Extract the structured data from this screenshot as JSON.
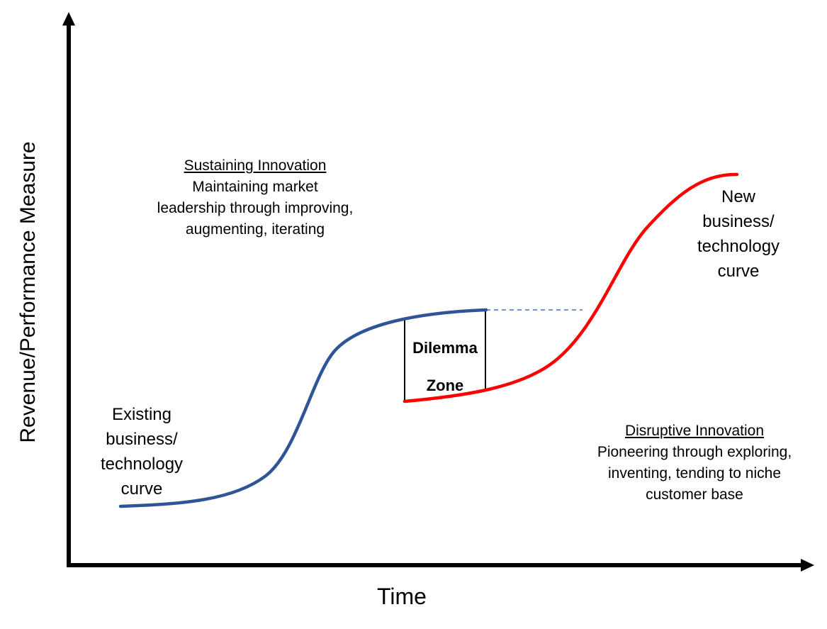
{
  "axes": {
    "x_label": "Time",
    "y_label": "Revenue/Performance Measure"
  },
  "sustaining": {
    "heading": "Sustaining Innovation",
    "lines": [
      "Maintaining market",
      "leadership through improving,",
      "augmenting, iterating"
    ]
  },
  "disruptive": {
    "heading": "Disruptive Innovation",
    "lines": [
      "Pioneering through exploring,",
      "inventing, tending to niche",
      "customer base"
    ]
  },
  "existing_curve": {
    "lines": [
      "Existing",
      "business/",
      "technology",
      "curve"
    ],
    "color": "#2f5597"
  },
  "new_curve": {
    "lines": [
      "New",
      "business/",
      "technology",
      "curve"
    ],
    "color": "#ff0000"
  },
  "dilemma": {
    "line1": "Dilemma",
    "line2": "Zone"
  },
  "connector_color": "#4472c4"
}
